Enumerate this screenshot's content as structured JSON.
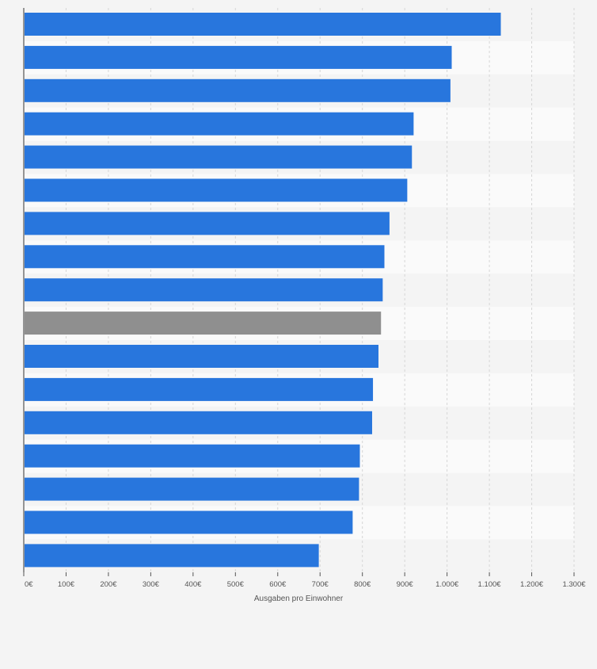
{
  "chart_data": {
    "type": "bar",
    "orientation": "horizontal",
    "title": "",
    "xlabel": "Ausgaben pro Einwohner",
    "ylabel": "",
    "xlim": [
      0,
      1300
    ],
    "ticks": [
      0,
      100,
      200,
      300,
      400,
      500,
      600,
      700,
      800,
      900,
      1000,
      1100,
      1200,
      1300
    ],
    "tick_labels": [
      "0€",
      "100€",
      "200€",
      "300€",
      "400€",
      "500€",
      "600€",
      "700€",
      "800€",
      "900€",
      "1.000€",
      "1.100€",
      "1.200€",
      "1.300€"
    ],
    "grid": true,
    "values": [
      1127,
      1011,
      1008,
      921,
      917,
      906,
      864,
      852,
      848,
      844,
      838,
      825,
      823,
      794,
      792,
      777,
      697
    ],
    "bar_colors": [
      "#2876dd",
      "#2876dd",
      "#2876dd",
      "#2876dd",
      "#2876dd",
      "#2876dd",
      "#2876dd",
      "#2876dd",
      "#2876dd",
      "#8f8f8f",
      "#2876dd",
      "#2876dd",
      "#2876dd",
      "#2876dd",
      "#2876dd",
      "#2876dd",
      "#2876dd"
    ],
    "colors": {
      "bar": "#2876dd",
      "highlight": "#8f8f8f"
    }
  }
}
